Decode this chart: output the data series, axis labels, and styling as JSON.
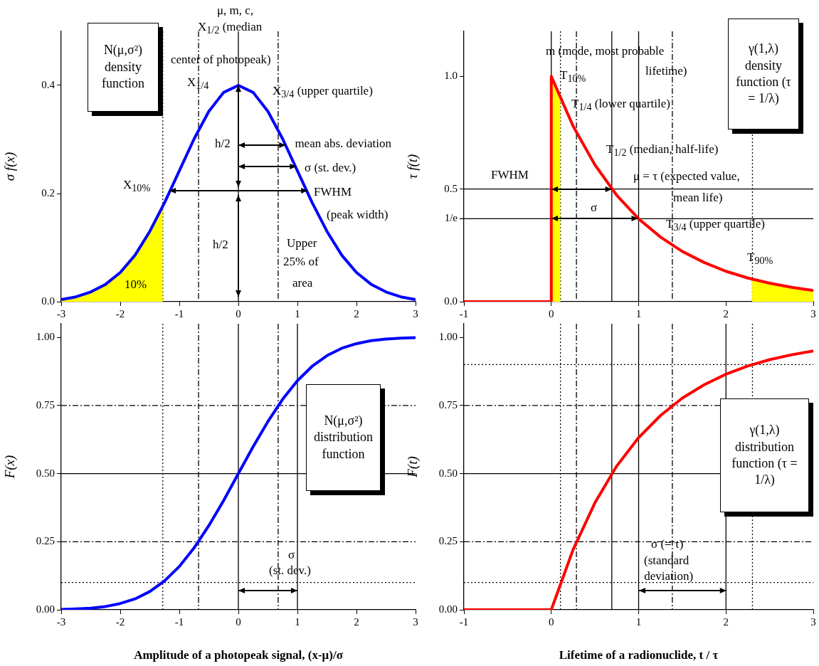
{
  "chart_data": [
    {
      "type": "line",
      "ylabel": "σ f(x)",
      "xlim": [
        -3,
        3
      ],
      "xticks": [
        -3,
        -2,
        -1,
        0,
        1,
        2,
        3
      ],
      "ylim": [
        0,
        0.5
      ],
      "yticks": [
        {
          "value": 0,
          "label": "0.0"
        },
        {
          "value": 0.2,
          "label": "0.2"
        },
        {
          "value": 0.4,
          "label": "0.4"
        }
      ],
      "legend": false,
      "series": [
        {
          "type": "line",
          "color": "#0000ff",
          "x": [
            -3,
            -2.75,
            -2.5,
            -2.25,
            -2,
            -1.75,
            -1.5,
            -1.25,
            -1,
            -0.75,
            -0.5,
            -0.25,
            0,
            0.25,
            0.5,
            0.75,
            1,
            1.25,
            1.5,
            1.75,
            2,
            2.25,
            2.5,
            2.75,
            3
          ],
          "values": [
            0.004,
            0.009,
            0.018,
            0.032,
            0.054,
            0.086,
            0.13,
            0.183,
            0.242,
            0.301,
            0.352,
            0.387,
            0.4,
            0.387,
            0.352,
            0.301,
            0.242,
            0.183,
            0.13,
            0.086,
            0.054,
            0.032,
            0.018,
            0.009,
            0.004
          ]
        },
        {
          "type": "area",
          "color": "#ffff00",
          "x": [
            -3,
            -2.75,
            -2.5,
            -2.25,
            -2,
            -1.75,
            -1.5,
            -1.28
          ],
          "values": [
            0.004,
            0.009,
            0.018,
            0.032,
            0.054,
            0.086,
            0.13,
            0.176
          ]
        }
      ],
      "ref_lines": [
        {
          "axis": "x",
          "value": -1.28,
          "line_style": "dotted"
        },
        {
          "axis": "x",
          "value": -0.674,
          "line_style": "dashed"
        },
        {
          "axis": "x",
          "value": 0,
          "line_style": "solid"
        },
        {
          "axis": "x",
          "value": 0.674,
          "line_style": "dashed"
        }
      ],
      "annotations": [
        "N(μ,σ²) density function",
        "μ, m, c,",
        "X$_{1/2}$ (median",
        "center of photopeak)",
        "X$_{1/4}$",
        "X$_{3/4}$ (upper quartile)",
        {
          "text": "h/2",
          "x": 0,
          "y": 0.3
        },
        {
          "text": "mean abs. deviation",
          "x": 0.8,
          "y": 0.29
        },
        {
          "text": "σ (st. dev.)",
          "x": 1,
          "y": 0.25
        },
        "X$_{10%}$",
        {
          "text": "FWHM",
          "x": 1.17,
          "y": 0.205
        },
        "(peak width)",
        {
          "text": "h/2",
          "x": 0,
          "y": 0.1
        },
        "Upper",
        "25% of",
        "area",
        "10%"
      ]
    },
    {
      "type": "line",
      "ylabel": "τ f(t)",
      "xlim": [
        -1,
        3
      ],
      "xticks": [
        -1,
        0,
        1,
        2,
        3
      ],
      "ylim": [
        0,
        1.2
      ],
      "yticks": [
        {
          "value": 0,
          "label": "0.0"
        },
        {
          "value": 0.5,
          "label": "0.5"
        },
        {
          "value": 1,
          "label": "1.0"
        }
      ],
      "legend": false,
      "series": [
        {
          "type": "line",
          "color": "#ff0000",
          "x": [
            -1,
            0,
            0,
            0.25,
            0.5,
            0.75,
            1,
            1.25,
            1.5,
            1.75,
            2,
            2.25,
            2.5,
            2.75,
            3
          ],
          "values": [
            0,
            0,
            1,
            0.779,
            0.607,
            0.472,
            0.368,
            0.287,
            0.223,
            0.174,
            0.135,
            0.105,
            0.082,
            0.064,
            0.05
          ]
        },
        {
          "type": "area",
          "color": "#ffff00",
          "x": [
            0,
            0.105
          ],
          "values": [
            1,
            0.9
          ]
        },
        {
          "type": "area",
          "color": "#ffff00",
          "x": [
            2.3,
            2.5,
            2.75,
            3
          ],
          "values": [
            0.1,
            0.082,
            0.064,
            0.05
          ]
        }
      ],
      "ref_lines": [
        {
          "axis": "x",
          "value": 0,
          "line_style": "solid"
        },
        {
          "axis": "x",
          "value": 0.105,
          "line_style": "dotted"
        },
        {
          "axis": "x",
          "value": 0.288,
          "line_style": "dashed"
        },
        {
          "axis": "x",
          "value": 0.693,
          "line_style": "solid"
        },
        {
          "axis": "x",
          "value": 1,
          "line_style": "solid"
        },
        {
          "axis": "x",
          "value": 1.386,
          "line_style": "dashed"
        },
        {
          "axis": "x",
          "value": 2.303,
          "line_style": "dotted"
        },
        {
          "axis": "y",
          "value": 0.5,
          "line_style": "solid"
        },
        {
          "axis": "y",
          "value": 0.368,
          "line_style": "solid",
          "label": "1/e"
        }
      ],
      "annotations": [
        "γ(1,λ) density function (τ = 1/λ)",
        "m (mode, most probable",
        "lifetime)",
        "T$_{10%}$",
        "T$_{1/4}$ (lower quartile)",
        "T$_{1/2}$ (median, half-life)",
        "FWHM",
        "μ = τ (expected value,",
        "mean life)",
        "σ",
        "T$_{3/4}$ (upper quartile)",
        "T$_{90%}$"
      ]
    },
    {
      "type": "line",
      "ylabel": "F(x)",
      "xlabel": "Amplitude of a photopeak signal, (x-μ)/σ",
      "xlim": [
        -3,
        3
      ],
      "xticks": [
        -3,
        -2,
        -1,
        0,
        1,
        2,
        3
      ],
      "ylim": [
        0,
        1.05
      ],
      "yticks": [
        {
          "value": 0,
          "label": "0.00"
        },
        {
          "value": 0.25,
          "label": "0.25"
        },
        {
          "value": 0.5,
          "label": "0.50"
        },
        {
          "value": 0.75,
          "label": "0.75"
        },
        {
          "value": 1,
          "label": "1.00"
        }
      ],
      "legend": false,
      "series": [
        {
          "type": "line",
          "color": "#0000ff",
          "x": [
            -3,
            -2.75,
            -2.5,
            -2.25,
            -2,
            -1.75,
            -1.5,
            -1.25,
            -1,
            -0.75,
            -0.5,
            -0.25,
            0,
            0.25,
            0.5,
            0.75,
            1,
            1.25,
            1.5,
            1.75,
            2,
            2.25,
            2.5,
            2.75,
            3
          ],
          "values": [
            0.001,
            0.003,
            0.006,
            0.012,
            0.023,
            0.04,
            0.067,
            0.106,
            0.159,
            0.227,
            0.309,
            0.401,
            0.5,
            0.599,
            0.691,
            0.773,
            0.841,
            0.894,
            0.933,
            0.96,
            0.977,
            0.988,
            0.994,
            0.997,
            0.999
          ]
        }
      ],
      "ref_lines": [
        {
          "axis": "x",
          "value": -1.28,
          "line_style": "dotted"
        },
        {
          "axis": "x",
          "value": -0.674,
          "line_style": "dashed"
        },
        {
          "axis": "x",
          "value": 0,
          "line_style": "solid"
        },
        {
          "axis": "x",
          "value": 0.674,
          "line_style": "dashed"
        },
        {
          "axis": "x",
          "value": 1,
          "line_style": "solid"
        },
        {
          "axis": "y",
          "value": 0.1,
          "line_style": "dotted"
        },
        {
          "axis": "y",
          "value": 0.25,
          "line_style": "dashed"
        },
        {
          "axis": "y",
          "value": 0.5,
          "line_style": "solid"
        },
        {
          "axis": "y",
          "value": 0.75,
          "line_style": "dashed"
        }
      ],
      "annotations": [
        "N(μ,σ²) distribution function",
        "σ",
        {
          "text": "(st. dev.)",
          "x": 1,
          "y": 0.07
        }
      ]
    },
    {
      "type": "line",
      "ylabel": "F(t)",
      "xlabel": "Lifetime of a radionuclide, t / τ",
      "xlim": [
        -1,
        3
      ],
      "xticks": [
        -1,
        0,
        1,
        2,
        3
      ],
      "ylim": [
        0,
        1.05
      ],
      "yticks": [
        {
          "value": 0,
          "label": "0.00"
        },
        {
          "value": 0.25,
          "label": "0.25"
        },
        {
          "value": 0.5,
          "label": "0.50"
        },
        {
          "value": 0.75,
          "label": "0.75"
        },
        {
          "value": 1,
          "label": "1.00"
        }
      ],
      "legend": false,
      "series": [
        {
          "type": "line",
          "color": "#ff0000",
          "x": [
            -1,
            0,
            0.25,
            0.5,
            0.75,
            1,
            1.25,
            1.5,
            1.75,
            2,
            2.25,
            2.5,
            2.75,
            3
          ],
          "values": [
            0,
            0,
            0.221,
            0.393,
            0.528,
            0.632,
            0.713,
            0.777,
            0.826,
            0.865,
            0.895,
            0.918,
            0.936,
            0.95
          ]
        }
      ],
      "ref_lines": [
        {
          "axis": "x",
          "value": 0.105,
          "line_style": "dotted"
        },
        {
          "axis": "x",
          "value": 0.288,
          "line_style": "dashed"
        },
        {
          "axis": "x",
          "value": 0.693,
          "line_style": "solid"
        },
        {
          "axis": "x",
          "value": 1,
          "line_style": "solid"
        },
        {
          "axis": "x",
          "value": 1.386,
          "line_style": "dashed"
        },
        {
          "axis": "x",
          "value": 2,
          "line_style": "solid"
        },
        {
          "axis": "x",
          "value": 2.303,
          "line_style": "dotted"
        },
        {
          "axis": "y",
          "value": 0.1,
          "line_style": "dotted"
        },
        {
          "axis": "y",
          "value": 0.25,
          "line_style": "dashed"
        },
        {
          "axis": "y",
          "value": 0.5,
          "line_style": "solid"
        },
        {
          "axis": "y",
          "value": 0.75,
          "line_style": "dashed"
        },
        {
          "axis": "y",
          "value": 0.9,
          "line_style": "dotted"
        }
      ],
      "annotations": [
        "γ(1,λ) distribution function (τ = 1/λ)",
        "σ (= τ)",
        "(standard",
        {
          "text": "deviation)",
          "x": 2,
          "y": 0.07
        }
      ]
    }
  ]
}
